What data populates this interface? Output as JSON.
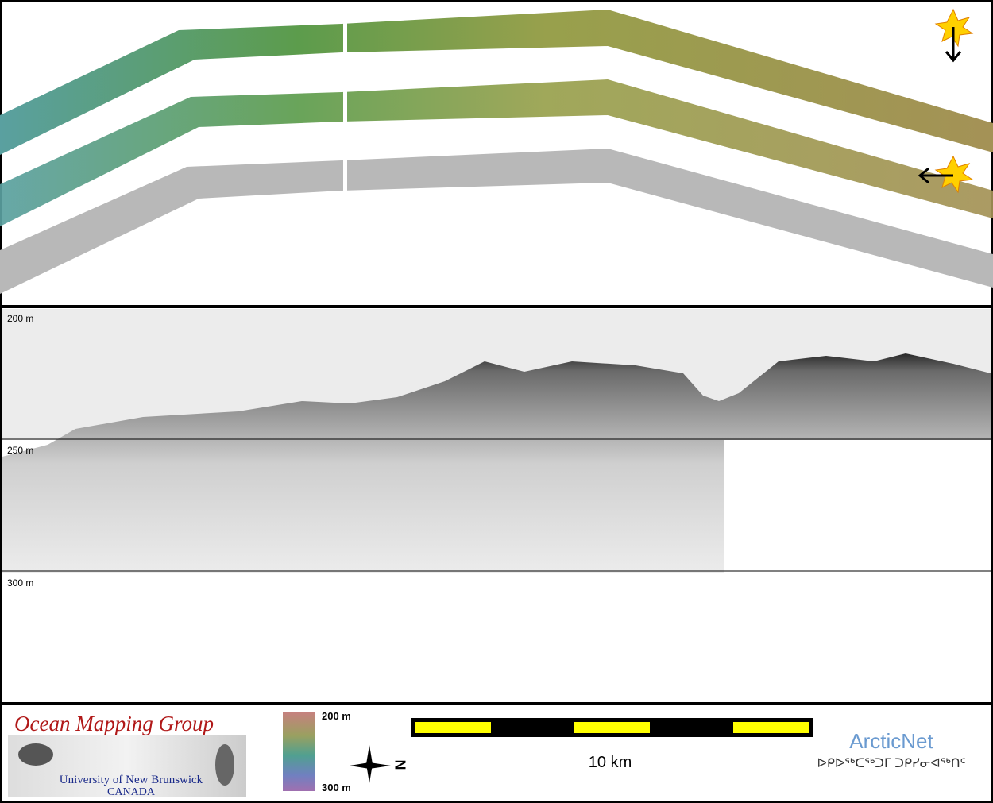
{
  "profile": {
    "depth_labels": [
      "200 m",
      "250 m",
      "300 m"
    ]
  },
  "footer": {
    "logo": {
      "title": "Ocean Mapping Group",
      "university": "University of New Brunswick",
      "country": "CANADA"
    },
    "colorbar": {
      "top": "200 m",
      "bottom": "300 m"
    },
    "compass": "N",
    "scale_bar": "10 km",
    "partner": {
      "name": "ArcticNet",
      "inuktitut": "ᐅᑭᐅᖅᑕᖅᑐᒥ ᑐᑭᓯᓂᐊᖅᑎᑦ"
    }
  }
}
